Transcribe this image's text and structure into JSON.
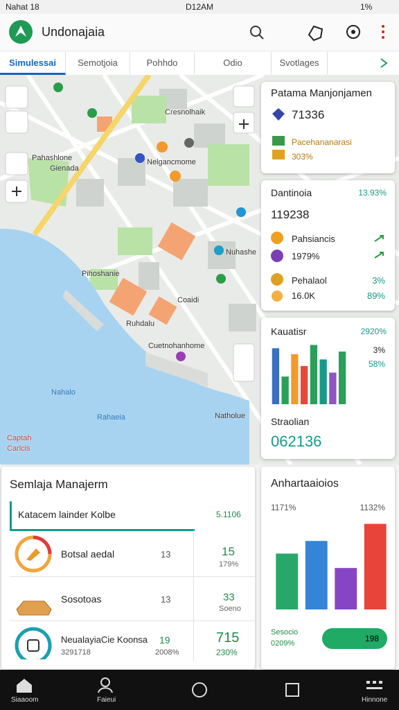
{
  "status_bar": {
    "left": "Nahat 18",
    "time": "D12AM",
    "battery": "1%"
  },
  "app_bar": {
    "title": "Undonajaia"
  },
  "tabs": [
    "Simulessai",
    "Semotjoia",
    "Pohhdo",
    "Odio",
    "Svotlages"
  ],
  "map": {
    "labels": [
      "Cresnolhaik",
      "Pahashlone",
      "Gienada",
      "Nelgancmome",
      "Pihoshanie",
      "Nuhashe",
      "Coaidi",
      "Ruhdalu",
      "Cuetnohanhome",
      "Nahalo",
      "Rahaeia",
      "Natholue",
      "Captah",
      "Carlcis"
    ]
  },
  "card1": {
    "title": "Patama Manjonjamen",
    "value": "71336",
    "label": "Pacehananarasi",
    "percent": "303%"
  },
  "card2": {
    "title": "Dantinoia",
    "title_value": "13.93%",
    "value": "119238",
    "rows": [
      [
        "Pahsiancis"
      ],
      [
        "1979%"
      ],
      [
        "Pehalaol",
        "3%"
      ],
      [
        "16.0K",
        "89%"
      ]
    ]
  },
  "card3": {
    "title": "Kauatisr",
    "title_value": "2920%",
    "stats": [
      "3%",
      "58%"
    ],
    "chart": {
      "ylim": [
        0,
        100
      ],
      "series": [
        {
          "color": "#3a6fc4",
          "values": [
            85
          ]
        },
        {
          "color": "#2aa05a",
          "values": [
            42
          ]
        },
        {
          "color": "#f39a2b",
          "values": [
            76
          ]
        },
        {
          "color": "#e5483b",
          "values": [
            58
          ]
        },
        {
          "color": "#2aa05a",
          "values": [
            90
          ]
        },
        {
          "color": "#159a88",
          "values": [
            68
          ]
        },
        {
          "color": "#8f55c2",
          "values": [
            48
          ]
        },
        {
          "color": "#2aa05a",
          "values": [
            80
          ]
        }
      ]
    },
    "footer_label": "Straolian",
    "footer_value": "062136"
  },
  "table_card": {
    "title": "Semlaja Manajerm",
    "header": [
      "Katacem lainder Kolbe",
      "5.1106"
    ],
    "rows": [
      [
        "Botsal aedal",
        "13",
        "15",
        "179%"
      ],
      [
        "Sosotoas",
        "13",
        "33",
        "Soeno"
      ],
      [
        "NeualayiaCie Koonsa",
        "3291718",
        "19",
        "2008%",
        "715",
        "230%"
      ]
    ]
  },
  "chart_card": {
    "title": "Anhartaaioios",
    "left_value": "1171%",
    "right_value": "1132%",
    "chart": {
      "ylim": [
        0,
        100
      ],
      "series": [
        {
          "color": "#27a86a",
          "values": [
            62
          ]
        },
        {
          "color": "#3584d6",
          "values": [
            76
          ]
        },
        {
          "color": "#8646c4",
          "values": [
            46
          ]
        },
        {
          "color": "#e8443a",
          "values": [
            95
          ]
        }
      ]
    },
    "footer_label": "Sesocio",
    "footer_value": "0209%",
    "button": "198"
  },
  "nav": [
    "Siaaoom",
    "Faieui",
    "Hinnone"
  ]
}
